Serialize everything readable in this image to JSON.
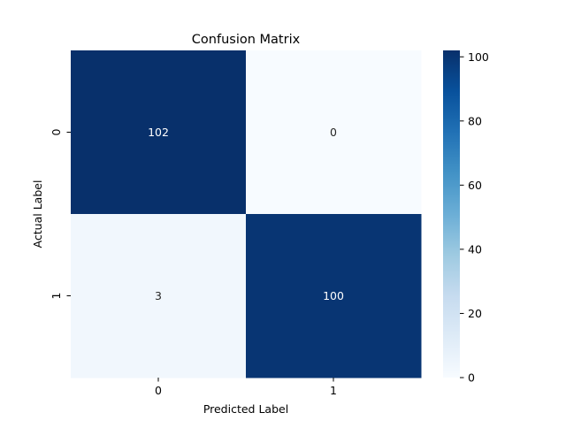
{
  "chart_data": {
    "type": "heatmap",
    "title": "Confusion Matrix",
    "xlabel": "Predicted Label",
    "ylabel": "Actual Label",
    "x_categories": [
      "0",
      "1"
    ],
    "y_categories": [
      "0",
      "1"
    ],
    "matrix": [
      [
        102,
        0
      ],
      [
        3,
        100
      ]
    ],
    "annotations": true,
    "colormap": "Blues",
    "colorbar": {
      "vmin": 0,
      "vmax": 102,
      "ticks": [
        0,
        20,
        40,
        60,
        80,
        100
      ]
    }
  }
}
